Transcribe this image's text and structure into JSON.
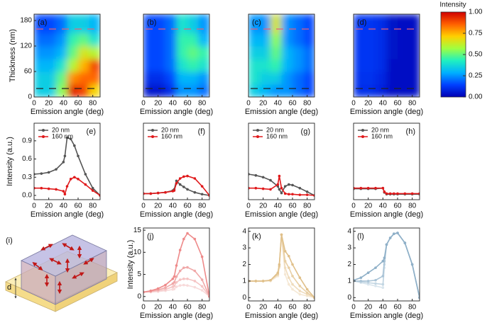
{
  "colorbar": {
    "title": "Intensity",
    "lim": [
      0,
      1
    ],
    "colors": [
      "#0000b4",
      "#0040ff",
      "#00b0ff",
      "#20f0c0",
      "#a0ff40",
      "#ffd000",
      "#ff6000",
      "#d00000"
    ],
    "ticks": [
      {
        "value": 0,
        "label": "0.00"
      },
      0.25,
      {
        "value": 0.5,
        "label": "0.50"
      },
      0.75,
      {
        "value": 1,
        "label": "1.00"
      }
    ]
  },
  "schematic": {
    "label": "(i)",
    "thickness_label": "d"
  },
  "chart_data": [
    {
      "type": "heatmap",
      "label": "(a)",
      "xlabel": "Emission angle (deg)",
      "ylabel": "Thickness (nm)",
      "xlim": [
        0,
        90
      ],
      "xticks": [
        0,
        20,
        40,
        60,
        80
      ],
      "ylim": [
        0,
        195
      ],
      "yticks": [
        0,
        60,
        120,
        180
      ],
      "x_edges": [
        0,
        15,
        30,
        45,
        60,
        75,
        90
      ],
      "y_edges": [
        0,
        30,
        60,
        90,
        120,
        150,
        195
      ],
      "z": [
        [
          0.35,
          0.35,
          0.55,
          0.95,
          0.9,
          0.7
        ],
        [
          0.35,
          0.35,
          0.5,
          0.8,
          0.85,
          0.85
        ],
        [
          0.3,
          0.3,
          0.4,
          0.6,
          0.75,
          0.9
        ],
        [
          0.25,
          0.25,
          0.3,
          0.5,
          0.65,
          0.6
        ],
        [
          0.2,
          0.2,
          0.25,
          0.45,
          0.5,
          0.4
        ],
        [
          0.15,
          0.15,
          0.2,
          0.35,
          0.35,
          0.3
        ]
      ],
      "guides": [
        {
          "y": 20,
          "color": "#222222"
        },
        {
          "y": 160,
          "color": "#e8607a"
        }
      ]
    },
    {
      "type": "heatmap",
      "label": "(b)",
      "xlabel": "Emission angle (deg)",
      "xlim": [
        0,
        90
      ],
      "xticks": [
        0,
        20,
        40,
        60,
        80
      ],
      "ylim": [
        0,
        195
      ],
      "x_edges": [
        0,
        15,
        30,
        45,
        60,
        75,
        90
      ],
      "y_edges": [
        0,
        30,
        60,
        90,
        120,
        150,
        195
      ],
      "z": [
        [
          0.05,
          0.05,
          0.1,
          0.25,
          0.25,
          0.2
        ],
        [
          0.1,
          0.1,
          0.15,
          0.3,
          0.3,
          0.25
        ],
        [
          0.15,
          0.15,
          0.2,
          0.4,
          0.45,
          0.4
        ],
        [
          0.15,
          0.15,
          0.2,
          0.45,
          0.5,
          0.45
        ],
        [
          0.15,
          0.15,
          0.2,
          0.45,
          0.45,
          0.3
        ],
        [
          0.15,
          0.15,
          0.2,
          0.4,
          0.35,
          0.25
        ]
      ],
      "guides": [
        {
          "y": 20,
          "color": "#222222"
        },
        {
          "y": 160,
          "color": "#e8607a"
        }
      ]
    },
    {
      "type": "heatmap",
      "label": "(c)",
      "xlabel": "Emission angle (deg)",
      "xlim": [
        0,
        90
      ],
      "xticks": [
        0,
        20,
        40,
        60,
        80
      ],
      "ylim": [
        0,
        195
      ],
      "x_edges": [
        0,
        15,
        30,
        45,
        60,
        75,
        90
      ],
      "y_edges": [
        0,
        30,
        60,
        90,
        120,
        150,
        195
      ],
      "z": [
        [
          0.35,
          0.3,
          0.25,
          0.25,
          0.2,
          0.15
        ],
        [
          0.4,
          0.35,
          0.35,
          0.25,
          0.2,
          0.15
        ],
        [
          0.4,
          0.4,
          0.45,
          0.3,
          0.25,
          0.2
        ],
        [
          0.35,
          0.35,
          0.5,
          0.3,
          0.25,
          0.2
        ],
        [
          0.3,
          0.3,
          0.55,
          0.25,
          0.2,
          0.15
        ],
        [
          0.25,
          0.25,
          0.65,
          0.25,
          0.2,
          0.15
        ]
      ],
      "guides": [
        {
          "y": 20,
          "color": "#222222"
        },
        {
          "y": 160,
          "color": "#e8607a"
        }
      ]
    },
    {
      "type": "heatmap",
      "label": "(d)",
      "xlabel": "Emission angle (deg)",
      "xlim": [
        0,
        90
      ],
      "xticks": [
        0,
        20,
        40,
        60,
        80
      ],
      "ylim": [
        0,
        195
      ],
      "x_edges": [
        0,
        15,
        30,
        45,
        60,
        75,
        90
      ],
      "y_edges": [
        0,
        30,
        60,
        90,
        120,
        150,
        195
      ],
      "z": [
        [
          0.1,
          0.1,
          0.08,
          0.03,
          0.03,
          0.03
        ],
        [
          0.11,
          0.11,
          0.09,
          0.03,
          0.03,
          0.03
        ],
        [
          0.12,
          0.12,
          0.1,
          0.03,
          0.03,
          0.03
        ],
        [
          0.12,
          0.12,
          0.1,
          0.04,
          0.03,
          0.03
        ],
        [
          0.12,
          0.12,
          0.1,
          0.04,
          0.03,
          0.03
        ],
        [
          0.12,
          0.12,
          0.1,
          0.04,
          0.03,
          0.03
        ]
      ],
      "guides": [
        {
          "y": 20,
          "color": "#222222"
        },
        {
          "y": 160,
          "color": "#e8607a"
        }
      ]
    },
    {
      "type": "line",
      "label": "(e)",
      "xlabel": "Emission angle (deg)",
      "ylabel": "Intensity (a.u.)",
      "xlim": [
        0,
        90
      ],
      "xticks": [
        0,
        20,
        40,
        60,
        80
      ],
      "ylim": [
        -0.07,
        1.19
      ],
      "yticks": [
        {
          "value": 0,
          "label": "0.0"
        },
        0.3,
        0.6,
        0.9
      ],
      "legend": "upper-left",
      "x": [
        0,
        10,
        20,
        30,
        40,
        42,
        45,
        50,
        55,
        60,
        70,
        80,
        90
      ],
      "series": [
        {
          "name": "20 nm",
          "color": "#555555",
          "values": [
            0.35,
            0.36,
            0.38,
            0.43,
            0.55,
            0.65,
            0.95,
            0.93,
            0.82,
            0.65,
            0.35,
            0.12,
            0
          ]
        },
        {
          "name": "160 nm",
          "color": "#e0191b",
          "values": [
            0.12,
            0.12,
            0.11,
            0.1,
            0.07,
            0.02,
            0.15,
            0.27,
            0.3,
            0.27,
            0.18,
            0.08,
            0
          ]
        }
      ]
    },
    {
      "type": "line",
      "label": "(f)",
      "xlabel": "Emission angle (deg)",
      "xlim": [
        0,
        90
      ],
      "xticks": [
        0,
        20,
        40,
        60,
        80
      ],
      "ylim": [
        -0.07,
        1.19
      ],
      "legend": "upper-left",
      "x": [
        0,
        10,
        20,
        30,
        40,
        42,
        45,
        50,
        55,
        60,
        70,
        80,
        90
      ],
      "series": [
        {
          "name": "20 nm",
          "color": "#555555",
          "values": [
            0.03,
            0.03,
            0.04,
            0.05,
            0.08,
            0.1,
            0.24,
            0.18,
            0.14,
            0.1,
            0.05,
            0.02,
            0
          ]
        },
        {
          "name": "160 nm",
          "color": "#e0191b",
          "values": [
            0.03,
            0.03,
            0.04,
            0.05,
            0.07,
            0.08,
            0.2,
            0.28,
            0.31,
            0.32,
            0.28,
            0.15,
            0
          ]
        }
      ]
    },
    {
      "type": "line",
      "label": "(g)",
      "xlabel": "Emission angle (deg)",
      "xlim": [
        0,
        90
      ],
      "xticks": [
        0,
        20,
        40,
        60,
        80
      ],
      "ylim": [
        -0.07,
        1.19
      ],
      "legend": "upper-left",
      "x": [
        0,
        10,
        20,
        30,
        40,
        42,
        45,
        50,
        55,
        60,
        70,
        80,
        90
      ],
      "series": [
        {
          "name": "20 nm",
          "color": "#555555",
          "values": [
            0.35,
            0.33,
            0.3,
            0.25,
            0.15,
            0.1,
            0.04,
            0.15,
            0.18,
            0.17,
            0.12,
            0.06,
            0
          ]
        },
        {
          "name": "160 nm",
          "color": "#e0191b",
          "values": [
            0.12,
            0.12,
            0.11,
            0.1,
            0.18,
            0.32,
            0.12,
            0.03,
            0.02,
            0.02,
            0.01,
            0.01,
            0
          ]
        }
      ]
    },
    {
      "type": "line",
      "label": "(h)",
      "xlabel": "Emission angle (deg)",
      "xlim": [
        0,
        90
      ],
      "xticks": [
        0,
        20,
        40,
        60,
        80
      ],
      "ylim": [
        -0.07,
        1.19
      ],
      "legend": "upper-left",
      "x": [
        0,
        10,
        20,
        30,
        40,
        42,
        45,
        50,
        55,
        60,
        70,
        80,
        90
      ],
      "series": [
        {
          "name": "20 nm",
          "color": "#555555",
          "values": [
            0.11,
            0.11,
            0.11,
            0.11,
            0.12,
            0.05,
            0.02,
            0.02,
            0.02,
            0.02,
            0.02,
            0.02,
            0.02
          ]
        },
        {
          "name": "160 nm",
          "color": "#e0191b",
          "values": [
            0.12,
            0.12,
            0.12,
            0.12,
            0.12,
            0.06,
            0.03,
            0.03,
            0.03,
            0.03,
            0.03,
            0.03,
            0.03
          ]
        }
      ]
    },
    {
      "type": "line",
      "label": "(j)",
      "xlabel": "Emission angle (deg)",
      "ylabel": "Intensity (a.u.)",
      "xlim": [
        0,
        90
      ],
      "xticks": [
        0,
        20,
        40,
        60,
        80
      ],
      "ylim": [
        -1,
        15.5
      ],
      "yticks": [
        0,
        5,
        10,
        15
      ],
      "x": [
        0,
        10,
        20,
        30,
        40,
        42,
        45,
        50,
        55,
        60,
        70,
        80,
        90
      ],
      "series": [
        {
          "color": "#f8dada",
          "values": [
            1,
            1,
            1.1,
            1.3,
            1.6,
            1.7,
            2.2,
            2.5,
            2.6,
            2.5,
            2.1,
            1.4,
            0
          ]
        },
        {
          "color": "#f5c4c4",
          "values": [
            1,
            1.1,
            1.3,
            1.6,
            2.2,
            2.4,
            3.2,
            3.8,
            4,
            4,
            3.5,
            2.3,
            0
          ]
        },
        {
          "color": "#f0a8a8",
          "values": [
            1,
            1.2,
            1.5,
            2,
            2.9,
            3.2,
            4.5,
            5.8,
            6.5,
            6.6,
            5.8,
            3.8,
            0
          ]
        },
        {
          "color": "#ee8a8a",
          "values": [
            1,
            1.3,
            1.8,
            2.6,
            4,
            4.5,
            7,
            10.5,
            13,
            14.3,
            13,
            9,
            0
          ]
        }
      ]
    },
    {
      "type": "line",
      "label": "(k)",
      "xlabel": "Emission angle (deg)",
      "xlim": [
        0,
        90
      ],
      "xticks": [
        0,
        20,
        40,
        60,
        80
      ],
      "ylim": [
        -0.2,
        4.2
      ],
      "yticks": [
        0,
        1,
        2,
        3,
        4
      ],
      "x": [
        0,
        10,
        20,
        30,
        40,
        42,
        45,
        50,
        55,
        60,
        70,
        80,
        90
      ],
      "series": [
        {
          "color": "#f5e8d4",
          "values": [
            1,
            1,
            1,
            1,
            1.3,
            1.8,
            3.8,
            1.4,
            0.8,
            0.5,
            0.2,
            0.1,
            0
          ]
        },
        {
          "color": "#efdcbd",
          "values": [
            1,
            1,
            1,
            1.05,
            1.4,
            1.9,
            3.8,
            1.8,
            1.2,
            0.8,
            0.4,
            0.2,
            0
          ]
        },
        {
          "color": "#e8cfa4",
          "values": [
            1,
            1,
            1,
            1.05,
            1.4,
            1.9,
            3.8,
            2.2,
            1.8,
            1.3,
            0.7,
            0.3,
            0
          ]
        },
        {
          "color": "#e0c08a",
          "values": [
            1,
            1,
            1,
            1.05,
            1.5,
            2,
            3.8,
            2.8,
            2.5,
            2,
            1.2,
            0.5,
            0
          ]
        }
      ]
    },
    {
      "type": "line",
      "label": "(l)",
      "xlabel": "Emission angle (deg)",
      "xlim": [
        0,
        90
      ],
      "xticks": [
        0,
        20,
        40,
        60,
        80
      ],
      "ylim": [
        -0.2,
        4.2
      ],
      "yticks": [
        0,
        1,
        2,
        3,
        4
      ],
      "x": [
        0,
        10,
        20,
        30,
        40,
        42,
        45,
        50,
        55,
        60,
        70,
        80,
        90
      ],
      "series": [
        {
          "color": "#dae6ee",
          "values": [
            1,
            0.9,
            0.8,
            0.7,
            0.6,
            1.8,
            3.2,
            3.6,
            3.85,
            3.9,
            3.3,
            2,
            0
          ]
        },
        {
          "color": "#c3d6e3",
          "values": [
            1,
            0.95,
            0.9,
            0.85,
            0.8,
            2,
            3.2,
            3.6,
            3.85,
            3.9,
            3.3,
            2,
            0
          ]
        },
        {
          "color": "#a9c3d6",
          "values": [
            1,
            1,
            1,
            1.05,
            1.3,
            2.2,
            3.2,
            3.6,
            3.85,
            3.9,
            3.3,
            2,
            0
          ]
        },
        {
          "color": "#8fb0c8",
          "values": [
            1.05,
            1.2,
            1.5,
            1.8,
            2.2,
            2.4,
            3.2,
            3.6,
            3.85,
            3.9,
            3.3,
            2,
            0
          ]
        }
      ]
    }
  ]
}
